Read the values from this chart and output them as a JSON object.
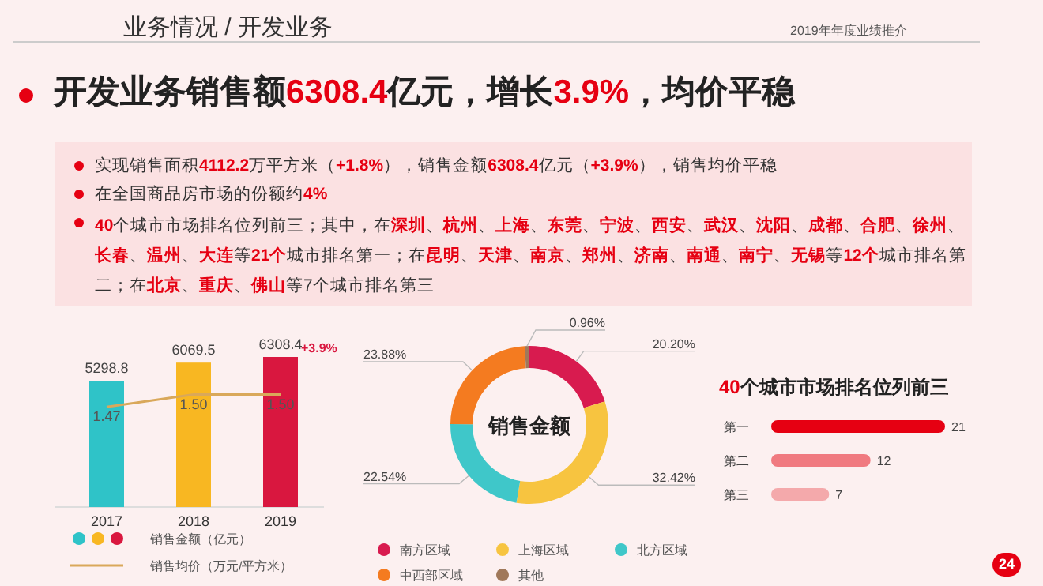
{
  "chart_data": [
    {
      "type": "other",
      "title": "开发业务销售额**6308.4**亿元，增长**3.9%**，均价平稳",
      "annotations": [
        "业务情况 / 开发业务",
        "2019年年度业绩推介",
        "实现销售面积**4112.2**万平方米（**+1.8%**），销售金额**6308.4**亿元（**+3.9%**），销售均价平稳",
        "在全国商品房市场的份额约**4%**",
        "**40**个城市市场排名位列前三；其中，在**深圳**、**杭州**、**上海**、**东莞**、**宁波**、**西安**、**武汉**、**沈阳**、**成都**、**合肥**、**徐州**、**长春**、**温州**、**大连**等**21个**城市排名第一；在**昆明**、**天津**、**南京**、**郑州**、**济南**、**南通**、**南宁**、**无锡**等**12个**城市排名第二；在**北京**、**重庆**、**佛山**等7个城市排名第三",
        "24"
      ]
    },
    {
      "type": "bar",
      "categories": [
        "2017",
        "2018",
        "2019"
      ],
      "data_labels": true,
      "legend": "bottom",
      "annotations": [
        {
          "text": "+3.9%",
          "x": "2019",
          "y": 6308.4
        }
      ],
      "series": [
        {
          "name": "销售金额（亿元）",
          "colors": [
            "#2fc3c8",
            "#f8b722",
            "#d9173f"
          ],
          "values": [
            5298.8,
            6069.5,
            6308.4
          ]
        },
        {
          "name": "销售均价（万元/平方米）",
          "type": "line",
          "axis": "y2",
          "color": "#d9a85a",
          "values": [
            1.47,
            1.5,
            1.5
          ],
          "value_labels": [
            "1.47",
            "1.50",
            "1.50"
          ]
        }
      ]
    },
    {
      "type": "donut",
      "title": "销售金额",
      "legend": "bottom",
      "categories": [
        "南方区域",
        "上海区域",
        "北方区域",
        "中西部区域",
        "其他"
      ],
      "values": [
        20.2,
        32.42,
        22.54,
        23.88,
        0.96
      ],
      "value_labels": [
        "20.20%",
        "32.42%",
        "22.54%",
        "23.88%",
        "0.96%"
      ],
      "colors": [
        "#d81b4f",
        "#f7c440",
        "#3fc7c9",
        "#f47b20",
        "#a0785a"
      ]
    },
    {
      "type": "bar",
      "orientation": "horizontal",
      "title": "**40**个城市市场排名位列前三",
      "categories": [
        "第一",
        "第二",
        "第三"
      ],
      "values": [
        21,
        12,
        7
      ],
      "colors": [
        "#e60012",
        "#f07a80",
        "#f4a9ab"
      ],
      "data_labels": true
    }
  ]
}
